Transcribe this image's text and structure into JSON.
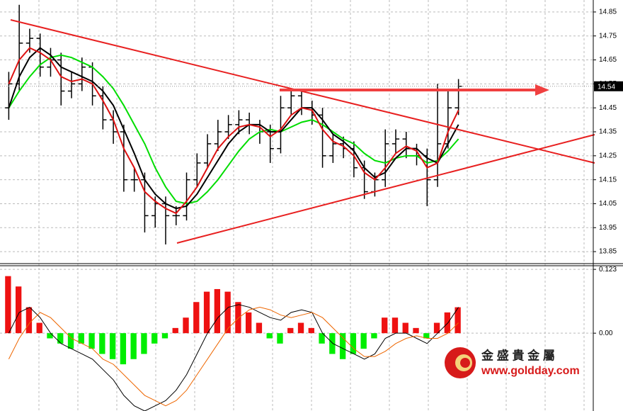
{
  "chart_data": [
    {
      "type": "candlestick",
      "bar_color": "#000000",
      "open": [
        14.45,
        14.55,
        14.72,
        14.74,
        14.62,
        14.65,
        14.52,
        14.55,
        14.62,
        14.5,
        14.4,
        14.35,
        14.15,
        14.15,
        14.0,
        14.05,
        14.0,
        14.0,
        14.15,
        14.22,
        14.3,
        14.35,
        14.38,
        14.4,
        14.38,
        14.35,
        14.28,
        14.45,
        14.5,
        14.45,
        14.42,
        14.25,
        14.3,
        14.28,
        14.2,
        14.1,
        14.15,
        14.3,
        14.32,
        14.28,
        14.25,
        14.15,
        14.3,
        14.45
      ],
      "high": [
        14.6,
        14.88,
        14.78,
        14.76,
        14.7,
        14.68,
        14.6,
        14.66,
        14.64,
        14.54,
        14.44,
        14.38,
        14.2,
        14.18,
        14.08,
        14.08,
        14.04,
        14.18,
        14.26,
        14.34,
        14.4,
        14.42,
        14.44,
        14.43,
        14.4,
        14.38,
        14.5,
        14.53,
        14.52,
        14.48,
        14.45,
        14.34,
        14.33,
        14.31,
        14.23,
        14.18,
        14.36,
        14.36,
        14.35,
        14.3,
        14.28,
        14.55,
        14.53,
        14.57
      ],
      "low": [
        14.4,
        14.52,
        14.68,
        14.58,
        14.58,
        14.46,
        14.49,
        14.52,
        14.46,
        14.36,
        14.3,
        14.1,
        14.1,
        13.93,
        13.95,
        13.88,
        13.96,
        13.98,
        14.12,
        14.2,
        14.27,
        14.32,
        14.34,
        14.34,
        14.3,
        14.22,
        14.26,
        14.42,
        14.42,
        14.38,
        14.2,
        14.22,
        14.24,
        14.16,
        14.07,
        14.08,
        14.12,
        14.26,
        14.24,
        14.21,
        14.04,
        14.12,
        14.28,
        14.42
      ],
      "close": [
        14.55,
        14.72,
        14.74,
        14.62,
        14.65,
        14.52,
        14.55,
        14.62,
        14.5,
        14.4,
        14.35,
        14.15,
        14.15,
        14.0,
        14.05,
        14.0,
        14.0,
        14.15,
        14.22,
        14.3,
        14.35,
        14.38,
        14.4,
        14.38,
        14.35,
        14.28,
        14.45,
        14.5,
        14.45,
        14.42,
        14.25,
        14.3,
        14.28,
        14.2,
        14.1,
        14.15,
        14.3,
        14.32,
        14.28,
        14.25,
        14.15,
        14.3,
        14.45,
        14.54
      ],
      "lines": [
        {
          "color": "#00dd00",
          "values": [
            14.45,
            14.52,
            14.58,
            14.63,
            14.66,
            14.67,
            14.66,
            14.64,
            14.62,
            14.58,
            14.53,
            14.46,
            14.38,
            14.3,
            14.2,
            14.12,
            14.06,
            14.05,
            14.06,
            14.1,
            14.15,
            14.21,
            14.27,
            14.32,
            14.35,
            14.36,
            14.35,
            14.37,
            14.39,
            14.4,
            14.38,
            14.35,
            14.32,
            14.3,
            14.26,
            14.23,
            14.22,
            14.24,
            14.25,
            14.25,
            14.22,
            14.23,
            14.27,
            14.32
          ]
        },
        {
          "color": "#000000",
          "values": [
            14.45,
            14.58,
            14.66,
            14.7,
            14.67,
            14.62,
            14.6,
            14.58,
            14.56,
            14.52,
            14.46,
            14.36,
            14.26,
            14.15,
            14.09,
            14.05,
            14.03,
            14.04,
            14.09,
            14.16,
            14.23,
            14.3,
            14.35,
            14.38,
            14.38,
            14.35,
            14.35,
            14.4,
            14.45,
            14.45,
            14.4,
            14.34,
            14.31,
            14.27,
            14.2,
            14.16,
            14.18,
            14.24,
            14.28,
            14.28,
            14.24,
            14.22,
            14.3,
            14.38
          ]
        },
        {
          "color": "#dd1111",
          "values": [
            14.55,
            14.65,
            14.7,
            14.68,
            14.65,
            14.58,
            14.56,
            14.57,
            14.55,
            14.48,
            14.4,
            14.28,
            14.2,
            14.1,
            14.06,
            14.03,
            14.01,
            14.06,
            14.12,
            14.2,
            14.28,
            14.33,
            14.37,
            14.38,
            14.37,
            14.33,
            14.36,
            14.42,
            14.45,
            14.44,
            14.36,
            14.31,
            14.29,
            14.25,
            14.18,
            14.15,
            14.2,
            14.26,
            14.29,
            14.27,
            14.2,
            14.22,
            14.35,
            14.44
          ]
        }
      ],
      "ylim": [
        13.8,
        14.9
      ],
      "yticks": [
        14.85,
        14.75,
        14.65,
        14.55,
        14.45,
        14.35,
        14.25,
        14.15,
        14.05,
        13.95,
        13.85
      ],
      "current_price": 14.54
    },
    {
      "type": "macd",
      "up_color": "#ee1111",
      "down_color": "#00ee00",
      "values": [
        0.11,
        0.09,
        0.05,
        0.02,
        -0.01,
        -0.02,
        -0.03,
        -0.02,
        -0.03,
        -0.04,
        -0.05,
        -0.06,
        -0.05,
        -0.04,
        -0.02,
        -0.01,
        0.01,
        0.03,
        0.06,
        0.08,
        0.085,
        0.08,
        0.06,
        0.04,
        0.02,
        -0.01,
        -0.02,
        0.01,
        0.02,
        0.01,
        -0.02,
        -0.04,
        -0.05,
        -0.04,
        -0.03,
        -0.01,
        0.03,
        0.03,
        0.02,
        0.01,
        -0.01,
        0.02,
        0.04,
        0.05
      ],
      "lines": [
        {
          "color": "#000000",
          "values": [
            0.0,
            0.04,
            0.05,
            0.03,
            0.0,
            -0.02,
            -0.03,
            -0.04,
            -0.05,
            -0.07,
            -0.09,
            -0.12,
            -0.14,
            -0.15,
            -0.14,
            -0.13,
            -0.11,
            -0.08,
            -0.04,
            0.0,
            0.03,
            0.05,
            0.055,
            0.05,
            0.04,
            0.03,
            0.025,
            0.04,
            0.045,
            0.04,
            0.0,
            -0.02,
            -0.03,
            -0.04,
            -0.05,
            -0.04,
            -0.01,
            0.0,
            0.0,
            -0.01,
            -0.02,
            0.0,
            0.02,
            0.05
          ]
        },
        {
          "color": "#ee6600",
          "values": [
            -0.05,
            -0.01,
            0.02,
            0.04,
            0.03,
            0.01,
            -0.01,
            -0.02,
            -0.03,
            -0.05,
            -0.06,
            -0.08,
            -0.1,
            -0.12,
            -0.13,
            -0.14,
            -0.13,
            -0.11,
            -0.08,
            -0.05,
            -0.02,
            0.01,
            0.03,
            0.045,
            0.05,
            0.045,
            0.035,
            0.03,
            0.035,
            0.04,
            0.03,
            0.01,
            -0.01,
            -0.03,
            -0.045,
            -0.045,
            -0.035,
            -0.02,
            -0.01,
            -0.005,
            -0.01,
            -0.01,
            0.0,
            0.02
          ]
        }
      ],
      "ylim": [
        -0.15,
        0.13
      ],
      "yticks": [
        0.123,
        {
          "value": 0,
          "label": "0.00"
        }
      ]
    }
  ],
  "logo": {
    "name": "金 盛 貴 金 屬",
    "url": "www.goldday.com"
  }
}
